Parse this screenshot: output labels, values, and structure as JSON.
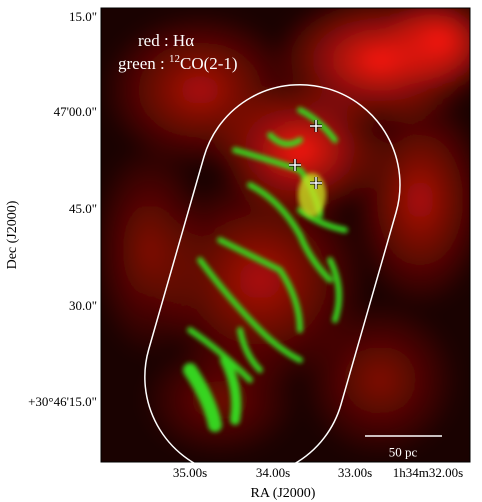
{
  "figure": {
    "legend": {
      "red": "red : Hα",
      "green": {
        "prefix": "green : ",
        "superscript": "12",
        "suffix": "CO(2-1)"
      }
    },
    "x_axis": {
      "label": "RA (J2000)",
      "ticks": [
        "35.00s",
        "34.00s",
        "33.00s",
        "1h34m32.00s"
      ]
    },
    "y_axis": {
      "label": "Dec (J2000)",
      "ticks": [
        "15.0\"",
        "47'00.0\"",
        "45.0\"",
        "30.0\"",
        "+30°46'15.0\""
      ]
    },
    "scale_bar": "50 pc"
  }
}
